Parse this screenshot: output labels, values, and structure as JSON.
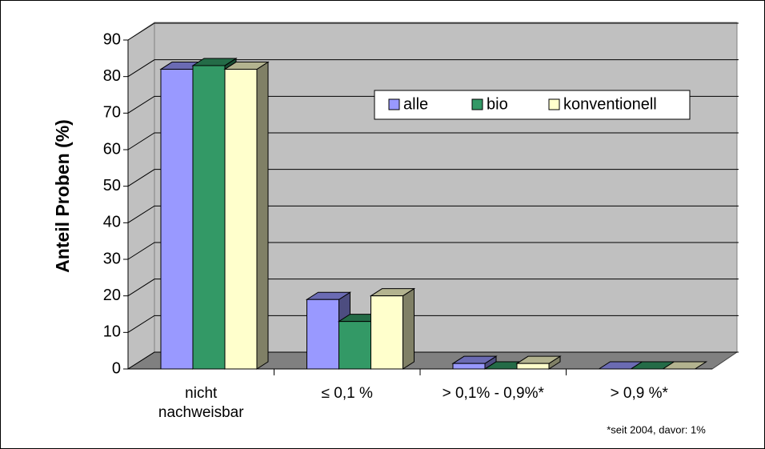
{
  "chart_data": {
    "type": "bar3d",
    "y_label": "Anteil Proben (%)",
    "footnote": "*seit 2004, davor: 1%",
    "categories": [
      "nicht\nnachweisbar",
      "≤ 0,1 %",
      "> 0,1% - 0,9%*",
      "> 0,9 %*"
    ],
    "series": [
      {
        "name": "alle",
        "color": "#9999ff",
        "values": [
          82,
          19,
          1.5,
          0
        ]
      },
      {
        "name": "bio",
        "color": "#339966",
        "values": [
          83,
          13,
          0,
          0
        ]
      },
      {
        "name": "konventionell",
        "color": "#ffffcc",
        "values": [
          82,
          20,
          1.5,
          0
        ]
      }
    ],
    "ylim": [
      0,
      90
    ],
    "yticks": [
      0,
      10,
      20,
      30,
      40,
      50,
      60,
      70,
      80,
      90
    ],
    "grid": true,
    "legend": "top-right"
  }
}
